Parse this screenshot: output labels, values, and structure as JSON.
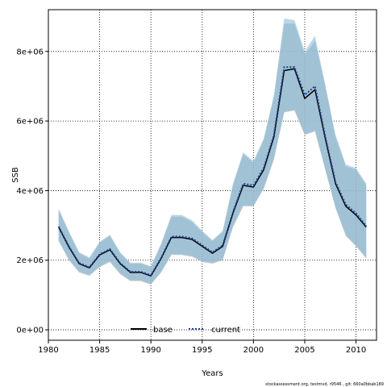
{
  "chart_data": {
    "type": "line",
    "xlabel": "Years",
    "ylabel": "SSB",
    "xlim": [
      1980,
      2012
    ],
    "ylim": [
      -300000,
      9200000
    ],
    "x_ticks": [
      1980,
      1985,
      1990,
      1995,
      2000,
      2005,
      2010
    ],
    "y_ticks": [
      0,
      2000000,
      4000000,
      6000000,
      8000000
    ],
    "y_tick_labels": [
      "0e+00",
      "2e+06",
      "4e+06",
      "6e+06",
      "8e+06"
    ],
    "grid": true,
    "legend_placement": "bottom-center",
    "footer": "stockassessment.org, testmvd, r9546 , git: 660a0bbab189",
    "colors": {
      "base_band": "#b4b4b4",
      "current_band": "#87bedc",
      "base_line": "#000000",
      "current_line": "#1f3f8f"
    },
    "x": [
      1981,
      1982,
      1983,
      1984,
      1985,
      1986,
      1987,
      1988,
      1989,
      1990,
      1991,
      1992,
      1993,
      1994,
      1995,
      1996,
      1997,
      1998,
      1999,
      2000,
      2001,
      2002,
      2003,
      2004,
      2005,
      2006,
      2007,
      2008,
      2009,
      2010,
      2011
    ],
    "series": [
      {
        "name": "base",
        "line_style": "solid",
        "values": [
          2950000,
          2380000,
          1900000,
          1780000,
          2150000,
          2300000,
          1900000,
          1650000,
          1650000,
          1550000,
          2050000,
          2650000,
          2650000,
          2600000,
          2400000,
          2200000,
          2400000,
          3350000,
          4150000,
          4100000,
          4600000,
          5550000,
          7450000,
          7500000,
          6650000,
          6900000,
          5500000,
          4200000,
          3550000,
          3300000,
          2950000
        ],
        "lower": [
          2550000,
          2000000,
          1650000,
          1550000,
          1800000,
          1950000,
          1600000,
          1400000,
          1400000,
          1300000,
          1650000,
          2150000,
          2150000,
          2100000,
          1950000,
          1900000,
          2000000,
          2950000,
          3550000,
          3550000,
          4050000,
          4900000,
          6250000,
          6300000,
          5600000,
          5700000,
          4600000,
          3500000,
          2700000,
          2400000,
          2050000
        ],
        "upper": [
          3450000,
          2800000,
          2200000,
          2050000,
          2500000,
          2700000,
          2200000,
          1900000,
          1900000,
          1800000,
          2450000,
          3250000,
          3250000,
          3100000,
          2800000,
          2550000,
          2800000,
          4150000,
          5050000,
          4800000,
          5450000,
          6700000,
          8800000,
          8800000,
          7900000,
          8300000,
          7000000,
          5550000,
          4700000,
          4600000,
          4150000
        ]
      },
      {
        "name": "current",
        "line_style": "dotted",
        "values": [
          2970000,
          2400000,
          1920000,
          1800000,
          2170000,
          2320000,
          1920000,
          1670000,
          1670000,
          1570000,
          2070000,
          2680000,
          2680000,
          2630000,
          2430000,
          2230000,
          2430000,
          3380000,
          4200000,
          4150000,
          4650000,
          5600000,
          7550000,
          7550000,
          6750000,
          7000000,
          5560000,
          4250000,
          3600000,
          3350000,
          2980000
        ],
        "lower": [
          2580000,
          2030000,
          1680000,
          1580000,
          1830000,
          1980000,
          1630000,
          1430000,
          1430000,
          1330000,
          1680000,
          2180000,
          2180000,
          2130000,
          1980000,
          1930000,
          2030000,
          2980000,
          3580000,
          3580000,
          4080000,
          4930000,
          6280000,
          6330000,
          5630000,
          5730000,
          4630000,
          3530000,
          2730000,
          2430000,
          2080000
        ],
        "upper": [
          3480000,
          2830000,
          2230000,
          2080000,
          2530000,
          2730000,
          2230000,
          1930000,
          1930000,
          1830000,
          2480000,
          3300000,
          3300000,
          3150000,
          2850000,
          2580000,
          2850000,
          4200000,
          5100000,
          4850000,
          5500000,
          6750000,
          8950000,
          8900000,
          8000000,
          8450000,
          7050000,
          5600000,
          4750000,
          4650000,
          4200000
        ]
      }
    ]
  }
}
